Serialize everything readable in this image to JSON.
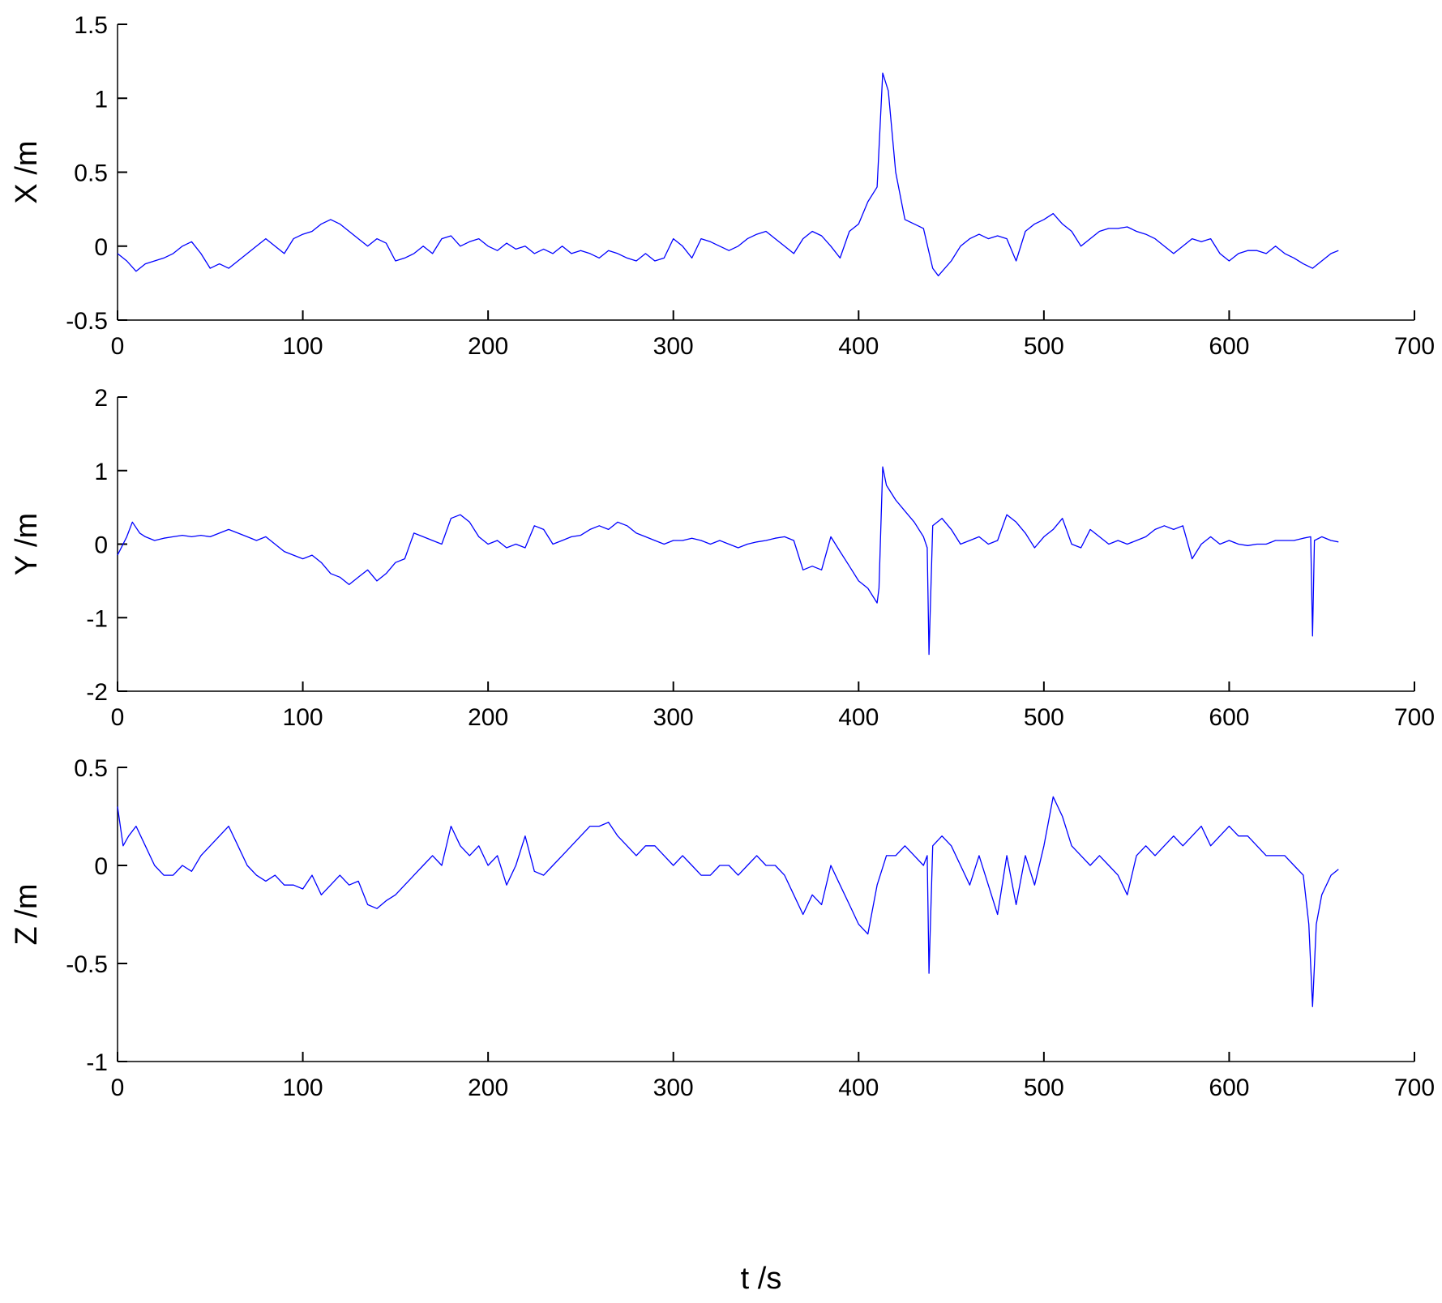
{
  "chart_data": [
    {
      "type": "line",
      "ylabel": "X /m",
      "xlabel": "",
      "xlim": [
        0,
        700
      ],
      "ylim": [
        -0.5,
        1.5
      ],
      "xticks": [
        0,
        100,
        200,
        300,
        400,
        500,
        600,
        700
      ],
      "yticks": [
        -0.5,
        0,
        0.5,
        1,
        1.5
      ],
      "grid": false,
      "color": "#0000ff",
      "series": [
        {
          "x": [
            0,
            5,
            10,
            15,
            20,
            25,
            30,
            35,
            40,
            45,
            50,
            55,
            60,
            65,
            70,
            75,
            80,
            85,
            90,
            95,
            100,
            105,
            110,
            115,
            120,
            125,
            130,
            135,
            140,
            145,
            150,
            155,
            160,
            165,
            170,
            175,
            180,
            185,
            190,
            195,
            200,
            205,
            210,
            215,
            220,
            225,
            230,
            235,
            240,
            245,
            250,
            255,
            260,
            265,
            270,
            275,
            280,
            285,
            290,
            295,
            300,
            305,
            310,
            315,
            320,
            325,
            330,
            335,
            340,
            345,
            350,
            355,
            360,
            365,
            370,
            375,
            380,
            385,
            390,
            395,
            400,
            405,
            410,
            413,
            416,
            420,
            425,
            430,
            435,
            440,
            443,
            450,
            455,
            460,
            465,
            470,
            475,
            480,
            485,
            490,
            495,
            500,
            505,
            510,
            515,
            520,
            525,
            530,
            535,
            540,
            545,
            550,
            555,
            560,
            565,
            570,
            575,
            580,
            585,
            590,
            595,
            600,
            605,
            610,
            615,
            620,
            625,
            630,
            635,
            640,
            645,
            650,
            655,
            659
          ],
          "y": [
            -0.05,
            -0.1,
            -0.17,
            -0.12,
            -0.1,
            -0.08,
            -0.05,
            0.0,
            0.03,
            -0.05,
            -0.15,
            -0.12,
            -0.15,
            -0.1,
            -0.05,
            0.0,
            0.05,
            0.0,
            -0.05,
            0.05,
            0.08,
            0.1,
            0.15,
            0.18,
            0.15,
            0.1,
            0.05,
            0.0,
            0.05,
            0.02,
            -0.1,
            -0.08,
            -0.05,
            0.0,
            -0.05,
            0.05,
            0.07,
            0.0,
            0.03,
            0.05,
            0.0,
            -0.03,
            0.02,
            -0.02,
            0.0,
            -0.05,
            -0.02,
            -0.05,
            0.0,
            -0.05,
            -0.03,
            -0.05,
            -0.08,
            -0.03,
            -0.05,
            -0.08,
            -0.1,
            -0.05,
            -0.1,
            -0.08,
            0.05,
            0.0,
            -0.08,
            0.05,
            0.03,
            0.0,
            -0.03,
            0.0,
            0.05,
            0.08,
            0.1,
            0.05,
            0.0,
            -0.05,
            0.05,
            0.1,
            0.07,
            0.0,
            -0.08,
            0.1,
            0.15,
            0.3,
            0.4,
            1.17,
            1.05,
            0.5,
            0.18,
            0.15,
            0.12,
            -0.15,
            -0.2,
            -0.1,
            0.0,
            0.05,
            0.08,
            0.05,
            0.07,
            0.05,
            -0.1,
            0.1,
            0.15,
            0.18,
            0.22,
            0.15,
            0.1,
            0.0,
            0.05,
            0.1,
            0.12,
            0.12,
            0.13,
            0.1,
            0.08,
            0.05,
            0.0,
            -0.05,
            0.0,
            0.05,
            0.03,
            0.05,
            -0.05,
            -0.1,
            -0.05,
            -0.03,
            -0.03,
            -0.05,
            0.0,
            -0.05,
            -0.08,
            -0.12,
            -0.15,
            -0.1,
            -0.05,
            -0.03
          ]
        }
      ]
    },
    {
      "type": "line",
      "ylabel": "Y /m",
      "xlabel": "",
      "xlim": [
        0,
        700
      ],
      "ylim": [
        -2,
        2
      ],
      "xticks": [
        0,
        100,
        200,
        300,
        400,
        500,
        600,
        700
      ],
      "yticks": [
        -2,
        -1,
        0,
        1,
        2
      ],
      "grid": false,
      "color": "#0000ff",
      "series": [
        {
          "x": [
            0,
            5,
            8,
            12,
            15,
            20,
            25,
            30,
            35,
            40,
            45,
            50,
            55,
            60,
            65,
            70,
            75,
            80,
            85,
            90,
            95,
            100,
            105,
            110,
            115,
            120,
            125,
            130,
            135,
            140,
            145,
            150,
            155,
            160,
            165,
            170,
            175,
            180,
            185,
            190,
            195,
            200,
            205,
            210,
            215,
            220,
            225,
            230,
            235,
            240,
            245,
            250,
            255,
            260,
            265,
            270,
            275,
            280,
            285,
            290,
            295,
            300,
            305,
            310,
            315,
            320,
            325,
            330,
            335,
            340,
            345,
            350,
            355,
            360,
            365,
            370,
            375,
            380,
            385,
            390,
            395,
            400,
            405,
            410,
            411,
            413,
            415,
            420,
            425,
            430,
            435,
            437,
            438,
            440,
            445,
            450,
            455,
            460,
            465,
            470,
            475,
            480,
            485,
            490,
            495,
            500,
            505,
            510,
            515,
            520,
            525,
            530,
            535,
            540,
            545,
            550,
            555,
            560,
            565,
            570,
            575,
            580,
            585,
            590,
            595,
            600,
            605,
            610,
            615,
            620,
            625,
            630,
            635,
            640,
            644,
            645,
            646,
            650,
            655,
            659
          ],
          "y": [
            -0.15,
            0.1,
            0.3,
            0.15,
            0.1,
            0.05,
            0.08,
            0.1,
            0.12,
            0.1,
            0.12,
            0.1,
            0.15,
            0.2,
            0.15,
            0.1,
            0.05,
            0.1,
            0.0,
            -0.1,
            -0.15,
            -0.2,
            -0.15,
            -0.25,
            -0.4,
            -0.45,
            -0.55,
            -0.45,
            -0.35,
            -0.5,
            -0.4,
            -0.25,
            -0.2,
            0.15,
            0.1,
            0.05,
            0.0,
            0.35,
            0.4,
            0.3,
            0.1,
            0.0,
            0.05,
            -0.05,
            0.0,
            -0.05,
            0.25,
            0.2,
            0.0,
            0.05,
            0.1,
            0.12,
            0.2,
            0.25,
            0.2,
            0.3,
            0.25,
            0.15,
            0.1,
            0.05,
            0.0,
            0.05,
            0.05,
            0.08,
            0.05,
            0.0,
            0.05,
            0.0,
            -0.05,
            0.0,
            0.03,
            0.05,
            0.08,
            0.1,
            0.05,
            -0.35,
            -0.3,
            -0.35,
            0.1,
            -0.1,
            -0.3,
            -0.5,
            -0.6,
            -0.8,
            -0.6,
            1.05,
            0.8,
            0.6,
            0.45,
            0.3,
            0.1,
            -0.05,
            -1.5,
            0.25,
            0.35,
            0.2,
            0.0,
            0.05,
            0.1,
            0.0,
            0.05,
            0.4,
            0.3,
            0.15,
            -0.05,
            0.1,
            0.2,
            0.35,
            0.0,
            -0.05,
            0.2,
            0.1,
            0.0,
            0.05,
            0.0,
            0.05,
            0.1,
            0.2,
            0.25,
            0.2,
            0.25,
            -0.2,
            0.0,
            0.1,
            0.0,
            0.05,
            0.0,
            -0.02,
            0.0,
            0.0,
            0.05,
            0.05,
            0.05,
            0.08,
            0.1,
            -1.25,
            0.05,
            0.1,
            0.05,
            0.03
          ]
        }
      ]
    },
    {
      "type": "line",
      "ylabel": "Z /m",
      "xlabel": "t /s",
      "xlim": [
        0,
        700
      ],
      "ylim": [
        -1,
        0.5
      ],
      "xticks": [
        0,
        100,
        200,
        300,
        400,
        500,
        600,
        700
      ],
      "yticks": [
        -1,
        -0.5,
        0,
        0.5
      ],
      "grid": false,
      "color": "#0000ff",
      "series": [
        {
          "x": [
            0,
            3,
            6,
            10,
            15,
            20,
            25,
            30,
            35,
            40,
            45,
            50,
            55,
            60,
            65,
            70,
            75,
            80,
            85,
            90,
            95,
            100,
            105,
            110,
            115,
            120,
            125,
            130,
            135,
            140,
            145,
            150,
            155,
            160,
            165,
            170,
            175,
            180,
            185,
            190,
            195,
            200,
            205,
            210,
            215,
            220,
            225,
            230,
            235,
            240,
            245,
            250,
            255,
            260,
            265,
            270,
            275,
            280,
            285,
            290,
            295,
            300,
            305,
            310,
            315,
            320,
            325,
            330,
            335,
            340,
            345,
            350,
            355,
            360,
            365,
            370,
            375,
            380,
            385,
            390,
            395,
            400,
            405,
            410,
            415,
            420,
            425,
            430,
            435,
            437,
            438,
            440,
            445,
            450,
            455,
            460,
            465,
            470,
            475,
            480,
            485,
            490,
            495,
            500,
            505,
            510,
            515,
            520,
            525,
            530,
            535,
            540,
            545,
            550,
            555,
            560,
            565,
            570,
            575,
            580,
            585,
            590,
            595,
            600,
            605,
            610,
            615,
            620,
            625,
            630,
            635,
            640,
            643,
            645,
            647,
            650,
            655,
            659
          ],
          "y": [
            0.3,
            0.1,
            0.15,
            0.2,
            0.1,
            0.0,
            -0.05,
            -0.05,
            0.0,
            -0.03,
            0.05,
            0.1,
            0.15,
            0.2,
            0.1,
            0.0,
            -0.05,
            -0.08,
            -0.05,
            -0.1,
            -0.1,
            -0.12,
            -0.05,
            -0.15,
            -0.1,
            -0.05,
            -0.1,
            -0.08,
            -0.2,
            -0.22,
            -0.18,
            -0.15,
            -0.1,
            -0.05,
            0.0,
            0.05,
            0.0,
            0.2,
            0.1,
            0.05,
            0.1,
            0.0,
            0.05,
            -0.1,
            0.0,
            0.15,
            -0.03,
            -0.05,
            0.0,
            0.05,
            0.1,
            0.15,
            0.2,
            0.2,
            0.22,
            0.15,
            0.1,
            0.05,
            0.1,
            0.1,
            0.05,
            0.0,
            0.05,
            0.0,
            -0.05,
            -0.05,
            0.0,
            0.0,
            -0.05,
            0.0,
            0.05,
            0.0,
            0.0,
            -0.05,
            -0.15,
            -0.25,
            -0.15,
            -0.2,
            0.0,
            -0.1,
            -0.2,
            -0.3,
            -0.35,
            -0.1,
            0.05,
            0.05,
            0.1,
            0.05,
            0.0,
            0.05,
            -0.55,
            0.1,
            0.15,
            0.1,
            0.0,
            -0.1,
            0.05,
            -0.1,
            -0.25,
            0.05,
            -0.2,
            0.05,
            -0.1,
            0.1,
            0.35,
            0.25,
            0.1,
            0.05,
            0.0,
            0.05,
            0.0,
            -0.05,
            -0.15,
            0.05,
            0.1,
            0.05,
            0.1,
            0.15,
            0.1,
            0.15,
            0.2,
            0.1,
            0.15,
            0.2,
            0.15,
            0.15,
            0.1,
            0.05,
            0.05,
            0.05,
            0.0,
            -0.05,
            -0.3,
            -0.72,
            -0.3,
            -0.15,
            -0.05,
            -0.02
          ]
        }
      ]
    }
  ]
}
